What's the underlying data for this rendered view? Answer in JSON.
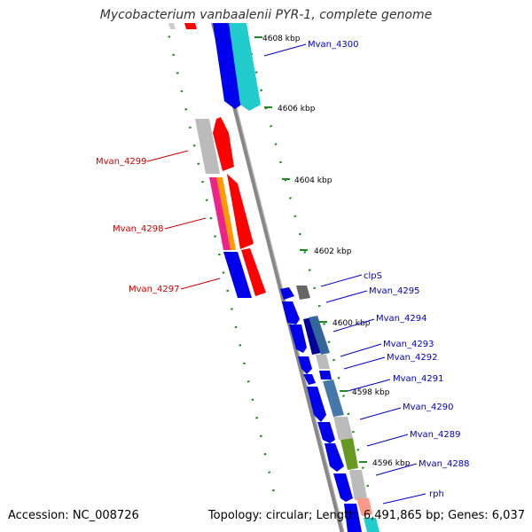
{
  "title": "Mycobacterium vanbaalenii PYR-1, complete genome",
  "footer": {
    "accession": "Accession: NC_008726",
    "summary": "Topology: circular; Length: 6,491,865 bp; Genes: 6,037"
  },
  "scale_labels": [
    "4608 kbp",
    "4606 kbp",
    "4604 kbp",
    "4602 kbp",
    "4600 kbp",
    "4598 kbp",
    "4596 kbp"
  ],
  "colors": {
    "backbone": "#888888",
    "ruler": "#228822",
    "forward_label": "#0000cc",
    "reverse_label": "#cc0000"
  },
  "gene_labels_forward": [
    "Mvan_4300",
    "clpS",
    "Mvan_4295",
    "Mvan_4294",
    "Mvan_4293",
    "Mvan_4292",
    "Mvan_4291",
    "Mvan_4290",
    "Mvan_4289",
    "Mvan_4288",
    "rph"
  ],
  "gene_labels_reverse": [
    "Mvan_4299",
    "Mvan_4298",
    "Mvan_4297"
  ]
}
